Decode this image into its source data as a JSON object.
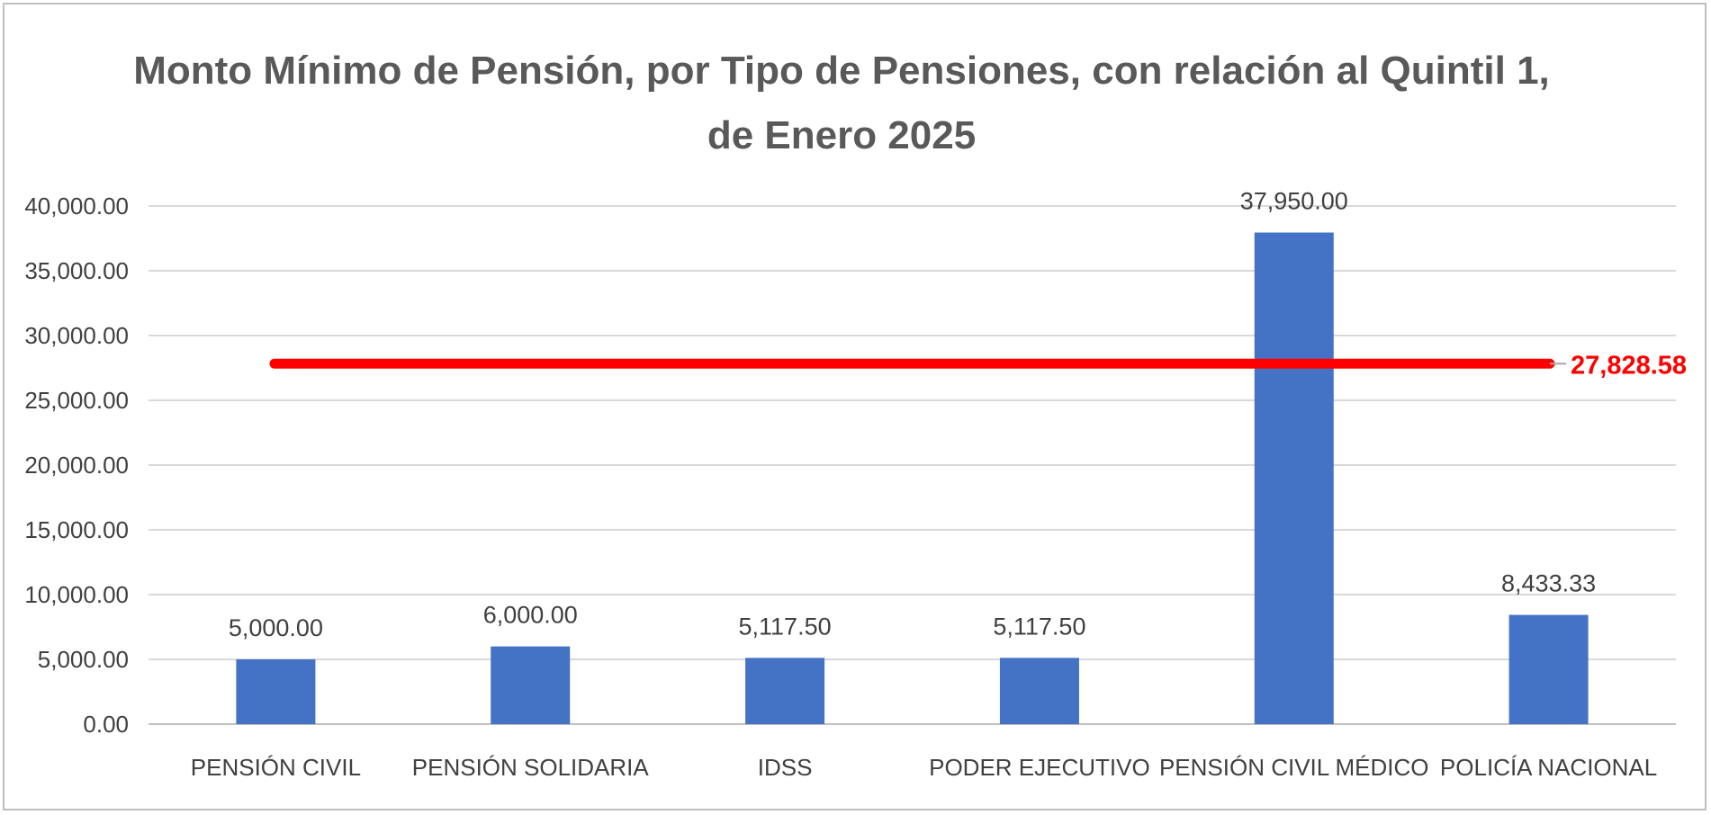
{
  "chart_data": {
    "type": "bar",
    "title": "Monto Mínimo de Pensión, por Tipo de Pensiones, con relación al Quintil 1, de Enero 2025",
    "xlabel": "",
    "ylabel": "",
    "categories": [
      "PENSIÓN CIVIL",
      "PENSIÓN SOLIDARIA",
      "IDSS",
      "PODER EJECUTIVO",
      "PENSIÓN CIVIL MÉDICO",
      "POLICÍA NACIONAL"
    ],
    "values": [
      5000.0,
      6000.0,
      5117.5,
      5117.5,
      37950.0,
      8433.33
    ],
    "data_labels": [
      "5,000.00",
      "6,000.00",
      "5,117.50",
      "5,117.50",
      "37,950.00",
      "8,433.33"
    ],
    "ylim": [
      0,
      40000
    ],
    "y_ticks": [
      0,
      5000,
      10000,
      15000,
      20000,
      25000,
      30000,
      35000,
      40000
    ],
    "y_tick_labels": [
      "0.00",
      "5,000.00",
      "10,000.00",
      "15,000.00",
      "20,000.00",
      "25,000.00",
      "30,000.00",
      "35,000.00",
      "40,000.00"
    ],
    "grid": true,
    "legend": "none",
    "bar_color": "#4472c4",
    "reference_line": {
      "value": 27828.58,
      "label": "27,828.58",
      "color": "#ff0000"
    }
  }
}
